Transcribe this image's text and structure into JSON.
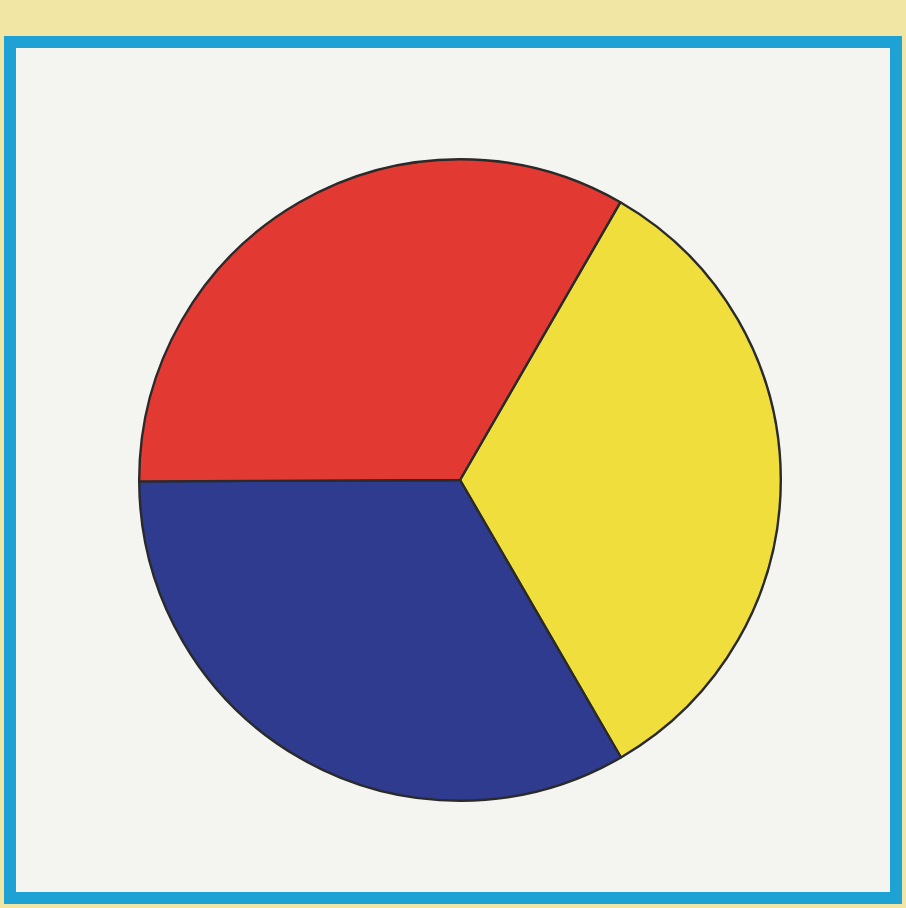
{
  "chart_data": {
    "type": "pie",
    "categories": [
      null,
      null,
      null
    ],
    "values": [
      33.3,
      33.3,
      33.4
    ],
    "colors": [
      "#f0de3c",
      "#2e3b8f",
      "#e23a32"
    ],
    "legend": false
  }
}
